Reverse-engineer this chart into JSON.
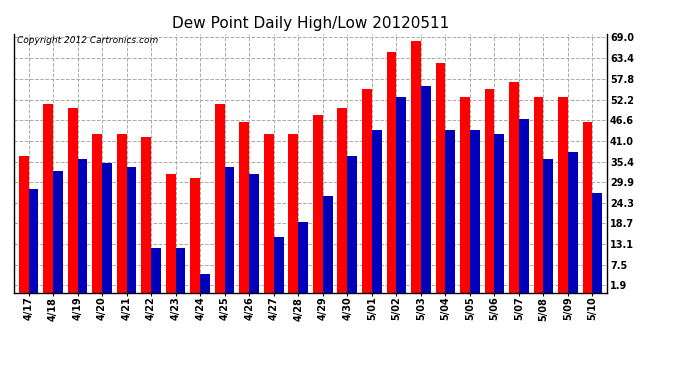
{
  "title": "Dew Point Daily High/Low 20120511",
  "copyright": "Copyright 2012 Cartronics.com",
  "categories": [
    "4/17",
    "4/18",
    "4/19",
    "4/20",
    "4/21",
    "4/22",
    "4/23",
    "4/24",
    "4/25",
    "4/26",
    "4/27",
    "4/28",
    "4/29",
    "4/30",
    "5/01",
    "5/02",
    "5/03",
    "5/04",
    "5/05",
    "5/06",
    "5/07",
    "5/08",
    "5/09",
    "5/10"
  ],
  "high": [
    37,
    51,
    50,
    43,
    43,
    42,
    32,
    31,
    51,
    46,
    43,
    43,
    48,
    50,
    55,
    65,
    68,
    62,
    53,
    55,
    57,
    53,
    53,
    46
  ],
  "low": [
    28,
    33,
    36,
    35,
    34,
    12,
    12,
    5,
    34,
    32,
    15,
    19,
    26,
    37,
    44,
    53,
    56,
    44,
    44,
    43,
    47,
    36,
    38,
    27
  ],
  "high_color": "#ff0000",
  "low_color": "#0000bb",
  "background_color": "#ffffff",
  "plot_bg_color": "#ffffff",
  "grid_color": "#aaaaaa",
  "yticks": [
    1.9,
    7.5,
    13.1,
    18.7,
    24.3,
    29.9,
    35.4,
    41.0,
    46.6,
    52.2,
    57.8,
    63.4,
    69.0
  ],
  "ylim": [
    0,
    70
  ],
  "bar_width": 0.4,
  "title_fontsize": 11,
  "tick_fontsize": 7,
  "copyright_fontsize": 6.5
}
